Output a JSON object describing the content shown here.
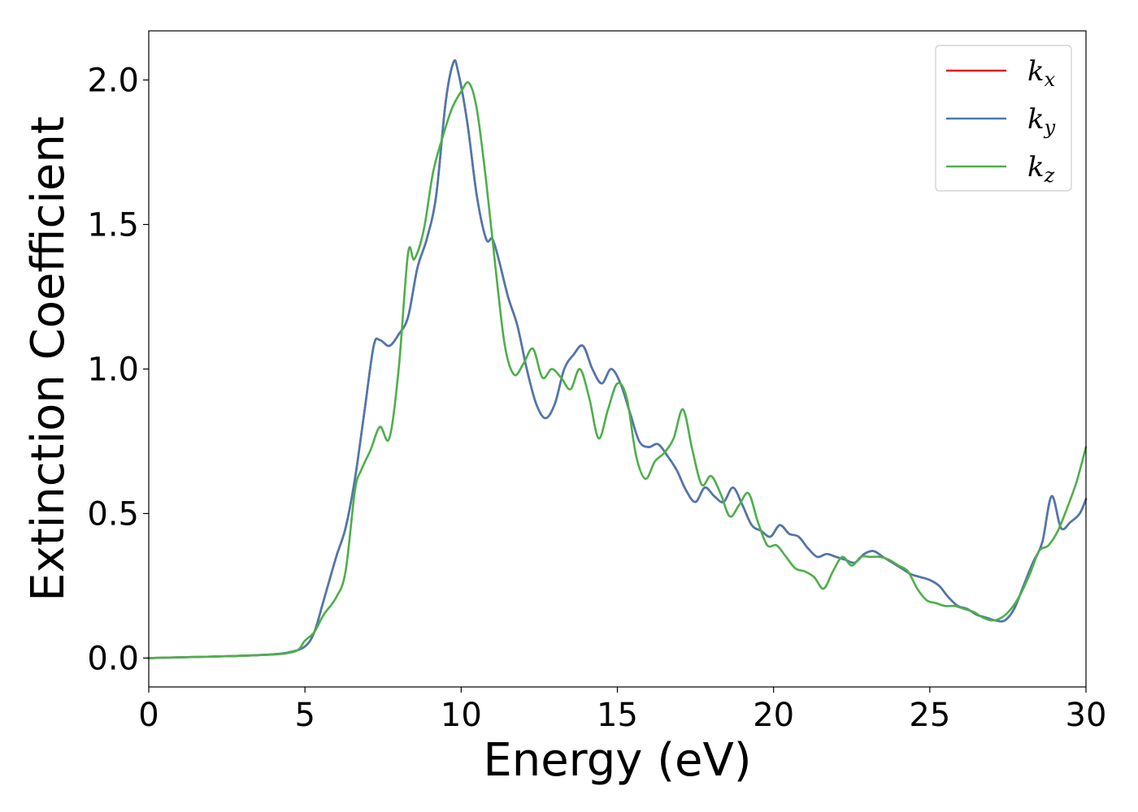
{
  "chart_data": {
    "type": "line",
    "xlabel": "Energy (eV)",
    "ylabel": "Extinction Coefficient",
    "xlim": [
      0,
      30
    ],
    "ylim": [
      -0.1,
      2.17
    ],
    "x_ticks": [
      0,
      5,
      10,
      15,
      20,
      25,
      30
    ],
    "x_tick_labels": [
      "0",
      "5",
      "10",
      "15",
      "20",
      "25",
      "30"
    ],
    "y_ticks": [
      0.0,
      0.5,
      1.0,
      1.5,
      2.0
    ],
    "y_tick_labels": [
      "0.0",
      "0.5",
      "1.0",
      "1.5",
      "2.0"
    ],
    "grid": false,
    "legend_position": "top-right",
    "series": [
      {
        "name": "k_x",
        "legend_base": "k",
        "legend_sub": "x",
        "color": "#e41a1c",
        "x": [
          0,
          2,
          3,
          4,
          4.5,
          5,
          5.3,
          5.6,
          6,
          6.3,
          6.6,
          6.9,
          7.2,
          7.4,
          7.7,
          8,
          8.3,
          8.6,
          8.9,
          9.2,
          9.5,
          9.75,
          9.9,
          10.2,
          10.5,
          10.8,
          11,
          11.2,
          11.5,
          11.8,
          12.1,
          12.4,
          12.7,
          13,
          13.3,
          13.6,
          13.9,
          14.2,
          14.5,
          14.8,
          15.1,
          15.4,
          15.7,
          16,
          16.3,
          16.6,
          16.9,
          17.2,
          17.5,
          17.8,
          18.1,
          18.4,
          18.7,
          19,
          19.3,
          19.6,
          19.9,
          20.2,
          20.5,
          20.8,
          21.1,
          21.4,
          21.7,
          22,
          22.3,
          22.6,
          22.9,
          23.2,
          23.5,
          23.8,
          24.1,
          24.4,
          24.7,
          25,
          25.3,
          25.6,
          25.9,
          26.2,
          26.5,
          26.8,
          27.1,
          27.4,
          27.7,
          28,
          28.3,
          28.6,
          28.9,
          29.2,
          29.5,
          29.8,
          30
        ],
        "values": [
          0.0,
          0.005,
          0.008,
          0.013,
          0.02,
          0.04,
          0.09,
          0.2,
          0.35,
          0.45,
          0.62,
          0.85,
          1.08,
          1.1,
          1.08,
          1.12,
          1.18,
          1.35,
          1.45,
          1.6,
          1.92,
          2.06,
          2.03,
          1.85,
          1.6,
          1.45,
          1.45,
          1.38,
          1.25,
          1.15,
          1.0,
          0.88,
          0.83,
          0.88,
          1.0,
          1.05,
          1.08,
          1.0,
          0.95,
          1.0,
          0.95,
          0.85,
          0.75,
          0.73,
          0.74,
          0.7,
          0.65,
          0.58,
          0.54,
          0.59,
          0.56,
          0.54,
          0.59,
          0.53,
          0.46,
          0.44,
          0.42,
          0.46,
          0.43,
          0.42,
          0.38,
          0.35,
          0.36,
          0.35,
          0.34,
          0.33,
          0.36,
          0.37,
          0.35,
          0.33,
          0.31,
          0.29,
          0.28,
          0.27,
          0.25,
          0.21,
          0.18,
          0.17,
          0.15,
          0.14,
          0.13,
          0.13,
          0.17,
          0.25,
          0.33,
          0.4,
          0.56,
          0.45,
          0.47,
          0.5,
          0.55
        ]
      },
      {
        "name": "k_y",
        "legend_base": "k",
        "legend_sub": "y",
        "color": "#4a79b0",
        "x": [
          0,
          2,
          3,
          4,
          4.5,
          5,
          5.3,
          5.6,
          6,
          6.3,
          6.6,
          6.9,
          7.2,
          7.4,
          7.7,
          8,
          8.3,
          8.6,
          8.9,
          9.2,
          9.5,
          9.75,
          9.9,
          10.2,
          10.5,
          10.8,
          11,
          11.2,
          11.5,
          11.8,
          12.1,
          12.4,
          12.7,
          13,
          13.3,
          13.6,
          13.9,
          14.2,
          14.5,
          14.8,
          15.1,
          15.4,
          15.7,
          16,
          16.3,
          16.6,
          16.9,
          17.2,
          17.5,
          17.8,
          18.1,
          18.4,
          18.7,
          19,
          19.3,
          19.6,
          19.9,
          20.2,
          20.5,
          20.8,
          21.1,
          21.4,
          21.7,
          22,
          22.3,
          22.6,
          22.9,
          23.2,
          23.5,
          23.8,
          24.1,
          24.4,
          24.7,
          25,
          25.3,
          25.6,
          25.9,
          26.2,
          26.5,
          26.8,
          27.1,
          27.4,
          27.7,
          28,
          28.3,
          28.6,
          28.9,
          29.2,
          29.5,
          29.8,
          30
        ],
        "values": [
          0.0,
          0.005,
          0.008,
          0.013,
          0.02,
          0.04,
          0.09,
          0.2,
          0.35,
          0.45,
          0.62,
          0.85,
          1.08,
          1.1,
          1.08,
          1.12,
          1.18,
          1.35,
          1.45,
          1.6,
          1.92,
          2.06,
          2.03,
          1.85,
          1.6,
          1.45,
          1.45,
          1.38,
          1.25,
          1.15,
          1.0,
          0.88,
          0.83,
          0.88,
          1.0,
          1.05,
          1.08,
          1.0,
          0.95,
          1.0,
          0.95,
          0.85,
          0.75,
          0.73,
          0.74,
          0.7,
          0.65,
          0.58,
          0.54,
          0.59,
          0.56,
          0.54,
          0.59,
          0.53,
          0.46,
          0.44,
          0.42,
          0.46,
          0.43,
          0.42,
          0.38,
          0.35,
          0.36,
          0.35,
          0.34,
          0.33,
          0.36,
          0.37,
          0.35,
          0.33,
          0.31,
          0.29,
          0.28,
          0.27,
          0.25,
          0.21,
          0.18,
          0.17,
          0.15,
          0.14,
          0.13,
          0.13,
          0.17,
          0.25,
          0.33,
          0.4,
          0.56,
          0.45,
          0.47,
          0.5,
          0.55
        ]
      },
      {
        "name": "k_z",
        "legend_base": "k",
        "legend_sub": "z",
        "color": "#4daf4a",
        "x": [
          0,
          2,
          3,
          4,
          4.5,
          4.8,
          5,
          5.3,
          5.6,
          6,
          6.3,
          6.6,
          6.8,
          7.1,
          7.4,
          7.7,
          8,
          8.3,
          8.5,
          8.8,
          9.1,
          9.4,
          9.7,
          10,
          10.25,
          10.5,
          10.8,
          11.1,
          11.4,
          11.7,
          12,
          12.3,
          12.6,
          12.9,
          13.2,
          13.5,
          13.8,
          14.1,
          14.4,
          14.7,
          15,
          15.3,
          15.6,
          15.9,
          16.2,
          16.5,
          16.8,
          17.1,
          17.4,
          17.7,
          18,
          18.3,
          18.6,
          18.9,
          19.2,
          19.5,
          19.8,
          20.1,
          20.4,
          20.7,
          21,
          21.3,
          21.6,
          21.9,
          22.2,
          22.5,
          22.8,
          23.1,
          23.4,
          23.7,
          24,
          24.3,
          24.6,
          24.9,
          25.2,
          25.5,
          25.8,
          26.1,
          26.4,
          26.7,
          27,
          27.3,
          27.6,
          27.9,
          28.2,
          28.5,
          28.8,
          29.1,
          29.4,
          29.7,
          30
        ],
        "values": [
          0.0,
          0.005,
          0.008,
          0.012,
          0.018,
          0.03,
          0.06,
          0.09,
          0.15,
          0.21,
          0.3,
          0.58,
          0.65,
          0.72,
          0.8,
          0.76,
          1.0,
          1.4,
          1.38,
          1.48,
          1.68,
          1.8,
          1.9,
          1.96,
          1.99,
          1.9,
          1.65,
          1.35,
          1.08,
          0.98,
          1.02,
          1.07,
          0.97,
          1.0,
          0.97,
          0.93,
          1.0,
          0.9,
          0.76,
          0.86,
          0.95,
          0.9,
          0.7,
          0.62,
          0.68,
          0.71,
          0.76,
          0.86,
          0.72,
          0.6,
          0.63,
          0.57,
          0.49,
          0.53,
          0.57,
          0.47,
          0.39,
          0.39,
          0.35,
          0.31,
          0.3,
          0.28,
          0.24,
          0.3,
          0.35,
          0.32,
          0.35,
          0.35,
          0.35,
          0.34,
          0.32,
          0.3,
          0.24,
          0.2,
          0.19,
          0.18,
          0.18,
          0.17,
          0.16,
          0.14,
          0.13,
          0.14,
          0.17,
          0.22,
          0.29,
          0.37,
          0.39,
          0.44,
          0.52,
          0.61,
          0.73
        ]
      }
    ]
  }
}
